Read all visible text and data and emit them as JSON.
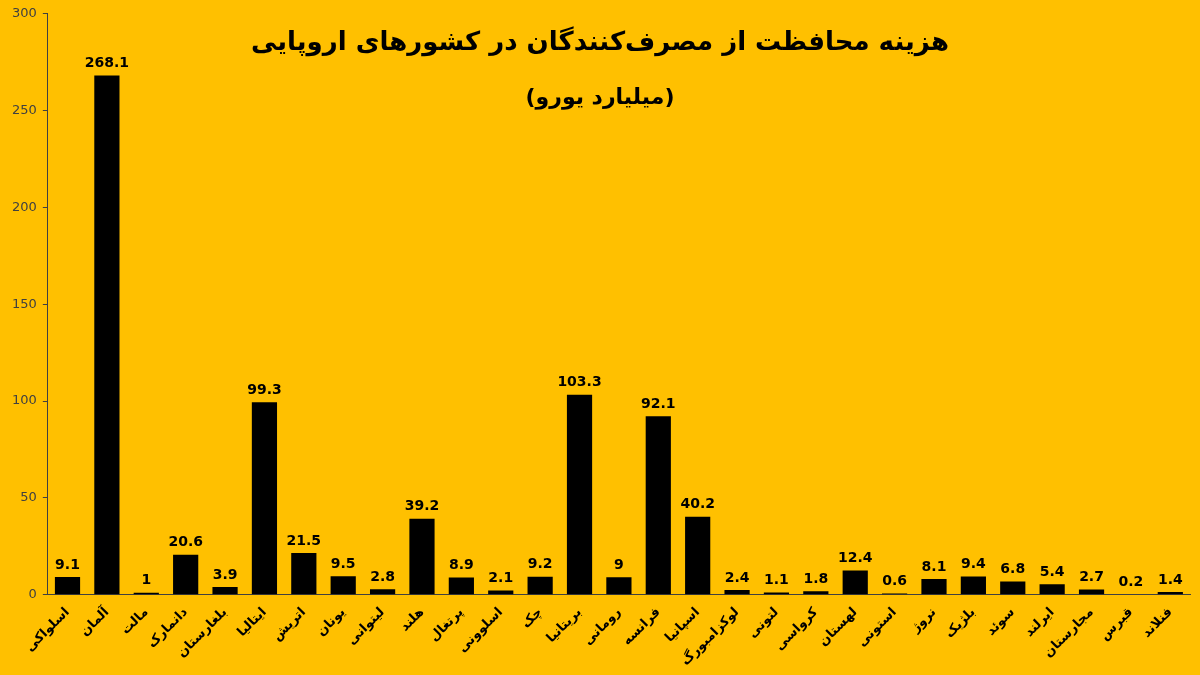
{
  "chart_data": {
    "type": "bar",
    "title": "هزینه محافظت از مصرف‌کنندگان در کشورهای اروپایی",
    "subtitle": "(میلیارد یورو)",
    "categories": [
      "اسلواکی",
      "آلمان",
      "مالت",
      "دانمارک",
      "بلغارستان",
      "ایتالیا",
      "اتریش",
      "یونان",
      "لیتوانی",
      "هلند",
      "پرتغال",
      "اسلوونی",
      "چک",
      "بریتانیا",
      "رومانی",
      "فرانسه",
      "اسپانیا",
      "لوکزامبورگ",
      "لتونی",
      "کرواسی",
      "لهستان",
      "استونی",
      "نروژ",
      "بلژیک",
      "سوئد",
      "ایرلند",
      "مجارستان",
      "قبرس",
      "فنلاند"
    ],
    "values": [
      9.1,
      268.1,
      1,
      20.6,
      3.9,
      99.3,
      21.5,
      9.5,
      2.8,
      39.2,
      8.9,
      2.1,
      9.2,
      103.3,
      9,
      92.1,
      40.2,
      2.4,
      1.1,
      1.8,
      12.4,
      0.6,
      8.1,
      9.4,
      6.8,
      5.4,
      2.7,
      0.2,
      1.4
    ],
    "color": "#000000",
    "ylim": [
      0,
      300
    ],
    "yticks": [
      0,
      50,
      100,
      150,
      200,
      250,
      300
    ],
    "grid": false,
    "data_labels": true
  }
}
